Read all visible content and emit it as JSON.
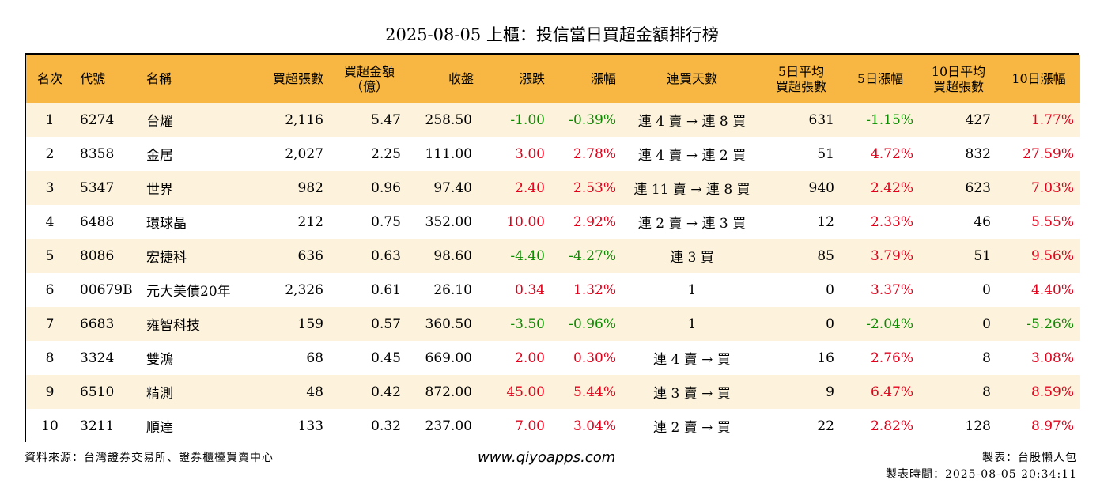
{
  "title": "2025-08-05 上櫃：投信當日買超金額排行榜",
  "headers": [
    {
      "line1": "名次",
      "line2": ""
    },
    {
      "line1": "代號",
      "line2": ""
    },
    {
      "line1": "名稱",
      "line2": ""
    },
    {
      "line1": "買超張數",
      "line2": ""
    },
    {
      "line1": "買超金額",
      "line2": "（億）"
    },
    {
      "line1": "收盤",
      "line2": ""
    },
    {
      "line1": "漲跌",
      "line2": ""
    },
    {
      "line1": "漲幅",
      "line2": ""
    },
    {
      "line1": "連買天數",
      "line2": ""
    },
    {
      "line1": "5日平均",
      "line2": "買超張數"
    },
    {
      "line1": "5日漲幅",
      "line2": ""
    },
    {
      "line1": "10日平均",
      "line2": "買超張數"
    },
    {
      "line1": "10日漲幅",
      "line2": ""
    }
  ],
  "rows": [
    {
      "rank": "1",
      "code": "6274",
      "name": "台燿",
      "buy_lots": "2,116",
      "buy_amount": "5.47",
      "close": "258.50",
      "change": "-1.00",
      "change_pct": "-0.39%",
      "streak": "連 4 賣 → 連 8 買",
      "avg5": "631",
      "pct5": "-1.15%",
      "avg10": "427",
      "pct10": "1.77%"
    },
    {
      "rank": "2",
      "code": "8358",
      "name": "金居",
      "buy_lots": "2,027",
      "buy_amount": "2.25",
      "close": "111.00",
      "change": "3.00",
      "change_pct": "2.78%",
      "streak": "連 4 賣 → 連 2 買",
      "avg5": "51",
      "pct5": "4.72%",
      "avg10": "832",
      "pct10": "27.59%"
    },
    {
      "rank": "3",
      "code": "5347",
      "name": "世界",
      "buy_lots": "982",
      "buy_amount": "0.96",
      "close": "97.40",
      "change": "2.40",
      "change_pct": "2.53%",
      "streak": "連 11 賣 → 連 8 買",
      "avg5": "940",
      "pct5": "2.42%",
      "avg10": "623",
      "pct10": "7.03%"
    },
    {
      "rank": "4",
      "code": "6488",
      "name": "環球晶",
      "buy_lots": "212",
      "buy_amount": "0.75",
      "close": "352.00",
      "change": "10.00",
      "change_pct": "2.92%",
      "streak": "連 2 賣 → 連 3 買",
      "avg5": "12",
      "pct5": "2.33%",
      "avg10": "46",
      "pct10": "5.55%"
    },
    {
      "rank": "5",
      "code": "8086",
      "name": "宏捷科",
      "buy_lots": "636",
      "buy_amount": "0.63",
      "close": "98.60",
      "change": "-4.40",
      "change_pct": "-4.27%",
      "streak": "連 3 買",
      "avg5": "85",
      "pct5": "3.79%",
      "avg10": "51",
      "pct10": "9.56%"
    },
    {
      "rank": "6",
      "code": "00679B",
      "name": "元大美債20年",
      "buy_lots": "2,326",
      "buy_amount": "0.61",
      "close": "26.10",
      "change": "0.34",
      "change_pct": "1.32%",
      "streak": "1",
      "avg5": "0",
      "pct5": "3.37%",
      "avg10": "0",
      "pct10": "4.40%"
    },
    {
      "rank": "7",
      "code": "6683",
      "name": "雍智科技",
      "buy_lots": "159",
      "buy_amount": "0.57",
      "close": "360.50",
      "change": "-3.50",
      "change_pct": "-0.96%",
      "streak": "1",
      "avg5": "0",
      "pct5": "-2.04%",
      "avg10": "0",
      "pct10": "-5.26%"
    },
    {
      "rank": "8",
      "code": "3324",
      "name": "雙鴻",
      "buy_lots": "68",
      "buy_amount": "0.45",
      "close": "669.00",
      "change": "2.00",
      "change_pct": "0.30%",
      "streak": "連 4 賣 → 買",
      "avg5": "16",
      "pct5": "2.76%",
      "avg10": "8",
      "pct10": "3.08%"
    },
    {
      "rank": "9",
      "code": "6510",
      "name": "精測",
      "buy_lots": "48",
      "buy_amount": "0.42",
      "close": "872.00",
      "change": "45.00",
      "change_pct": "5.44%",
      "streak": "連 3 賣 → 買",
      "avg5": "9",
      "pct5": "6.47%",
      "avg10": "8",
      "pct10": "8.59%"
    },
    {
      "rank": "10",
      "code": "3211",
      "name": "順達",
      "buy_lots": "133",
      "buy_amount": "0.32",
      "close": "237.00",
      "change": "7.00",
      "change_pct": "3.04%",
      "streak": "連 2 賣 → 買",
      "avg5": "22",
      "pct5": "2.82%",
      "avg10": "128",
      "pct10": "8.97%"
    }
  ],
  "footer": {
    "source": "資料來源：台灣證券交易所、證券櫃檯買賣中心",
    "website": "www.qiyoapps.com",
    "author": "製表：台股懶人包",
    "time": "製表時間：2025-08-05 20:34:11"
  },
  "colors": {
    "header_bg": "#f8b742",
    "row_alt_bg": "#fdf3dd",
    "up": "#e2001a",
    "down": "#0e8a00"
  }
}
